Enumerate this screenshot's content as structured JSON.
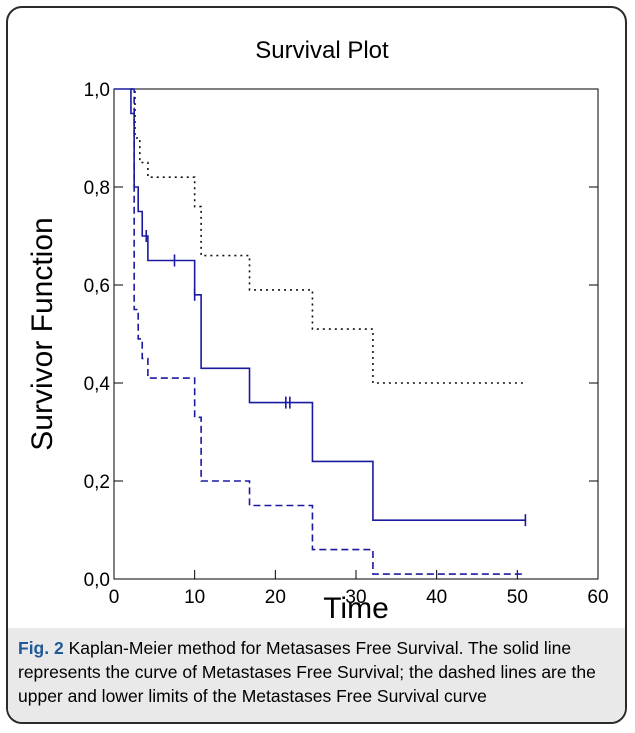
{
  "figure": {
    "caption_label": "Fig. 2",
    "caption_text": " Kaplan-Meier method for Metasases Free Survival. The solid line represents the curve of Metastases Free Survival; the dashed lines are the upper and lower limits of the Metastases Free Survival curve"
  },
  "chart_data": {
    "type": "line",
    "title": "Survival Plot",
    "xlabel": "Time",
    "ylabel": "Survivor Function",
    "xlim": [
      0,
      60
    ],
    "ylim": [
      0,
      1
    ],
    "x_ticks": [
      0,
      10,
      20,
      30,
      40,
      50,
      60
    ],
    "x_tick_labels": [
      "0",
      "10",
      "20",
      "30",
      "40",
      "50",
      "60"
    ],
    "y_ticks": [
      0,
      0.2,
      0.4,
      0.6,
      0.8,
      1.0
    ],
    "y_tick_labels": [
      "0,0",
      "0,2",
      "0,4",
      "0,6",
      "0,8",
      "1,0"
    ],
    "grid": false,
    "series": [
      {
        "style": "solid",
        "color": "#1a1aa0",
        "steps": [
          [
            0.0,
            1.0
          ],
          [
            2.1,
            0.95
          ],
          [
            2.5,
            0.8
          ],
          [
            3.0,
            0.75
          ],
          [
            3.5,
            0.7
          ],
          [
            4.2,
            0.65
          ],
          [
            10.0,
            0.58
          ],
          [
            10.8,
            0.43
          ],
          [
            16.8,
            0.36
          ],
          [
            24.6,
            0.24
          ],
          [
            32.1,
            0.12
          ],
          [
            51.0,
            0.12
          ]
        ],
        "censor_times": [
          4.0,
          7.5,
          10.0,
          21.3,
          21.8,
          51.0
        ]
      },
      {
        "style": "dotted",
        "color": "#111111",
        "steps": [
          [
            2.1,
            1.0
          ],
          [
            2.6,
            0.9
          ],
          [
            3.2,
            0.85
          ],
          [
            4.2,
            0.82
          ],
          [
            10.0,
            0.76
          ],
          [
            10.8,
            0.66
          ],
          [
            16.8,
            0.59
          ],
          [
            24.6,
            0.51
          ],
          [
            32.1,
            0.4
          ],
          [
            51.0,
            0.4
          ]
        ]
      },
      {
        "style": "dashed",
        "color": "#1a1aa0",
        "steps": [
          [
            2.1,
            1.0
          ],
          [
            2.5,
            0.55
          ],
          [
            3.0,
            0.49
          ],
          [
            3.5,
            0.45
          ],
          [
            4.2,
            0.41
          ],
          [
            10.0,
            0.33
          ],
          [
            10.8,
            0.2
          ],
          [
            16.8,
            0.15
          ],
          [
            24.6,
            0.06
          ],
          [
            32.1,
            0.01
          ],
          [
            51.0,
            0.01
          ]
        ]
      }
    ]
  }
}
